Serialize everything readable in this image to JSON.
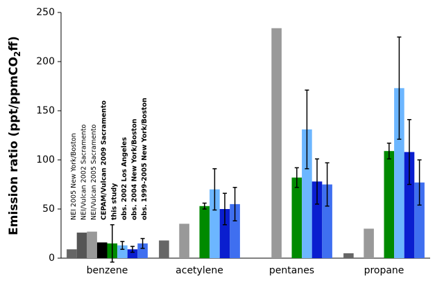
{
  "chart_data": {
    "type": "bar",
    "y_label": [
      "Emission ratio (ppt/ppmCO",
      "2",
      "ff)"
    ],
    "categories": [
      "benzene",
      "acetylene",
      "pentanes",
      "propane"
    ],
    "series": [
      {
        "name": "NEI 2005 New York/Boston",
        "color": "#666666",
        "values": [
          9,
          18,
          null,
          5
        ]
      },
      {
        "name": "NEI/Vulcan 2002 Sacramento",
        "color": "#555555",
        "values": [
          26,
          null,
          null,
          null
        ]
      },
      {
        "name": "NEI/Vulcan 2005 Sacramento",
        "color": "#999999",
        "values": [
          27,
          35,
          234,
          30
        ]
      },
      {
        "name": "CEPAM/Vulcan 2009 Sacramento",
        "color": "#000000",
        "values": [
          16,
          null,
          null,
          null
        ]
      },
      {
        "name": "this study",
        "color": "#008a00",
        "values": [
          15,
          53,
          82,
          109
        ],
        "errors": [
          19,
          3,
          10,
          8
        ]
      },
      {
        "name": "obs. 2002 Los Angeles",
        "color": "#6cb6ff",
        "values": [
          13,
          70,
          131,
          173
        ],
        "errors": [
          4,
          21,
          40,
          52
        ]
      },
      {
        "name": "obs. 2004 New York/Boston",
        "color": "#0a1ecf",
        "values": [
          9,
          50,
          78,
          108
        ],
        "errors": [
          3,
          16,
          23,
          33
        ]
      },
      {
        "name": "obs. 1999-2005 New York/Boston",
        "color": "#3f6ff0",
        "values": [
          15,
          55,
          75,
          77
        ],
        "errors": [
          5,
          17,
          22,
          23
        ]
      }
    ],
    "ylim": [
      0,
      250
    ],
    "yticks": [
      0,
      50,
      100,
      150,
      200,
      250
    ],
    "grid": false
  }
}
